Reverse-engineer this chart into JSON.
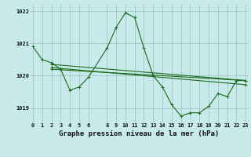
{
  "title": "Graphe pression niveau de la mer (hPa)",
  "background_color": "#c8eaea",
  "grid_color": "#a0c8c8",
  "line_color": "#1a6b1a",
  "series": [
    {
      "x": [
        0,
        1,
        2,
        3,
        4,
        5,
        6,
        8,
        9,
        10,
        11,
        12,
        13,
        14,
        15,
        16,
        17,
        18,
        19,
        20,
        21,
        22,
        23
      ],
      "y": [
        1020.9,
        1020.5,
        1020.4,
        1020.2,
        1019.55,
        1019.65,
        1019.95,
        1020.85,
        1021.5,
        1021.95,
        1021.8,
        1020.85,
        1020.0,
        1019.65,
        1019.1,
        1018.75,
        1018.85,
        1018.85,
        1019.05,
        1019.45,
        1019.35,
        1019.85,
        1019.85
      ]
    },
    {
      "x": [
        2,
        23
      ],
      "y": [
        1020.35,
        1019.85
      ]
    },
    {
      "x": [
        2,
        23
      ],
      "y": [
        1020.25,
        1019.72
      ]
    },
    {
      "x": [
        2,
        23
      ],
      "y": [
        1020.2,
        1019.85
      ]
    }
  ],
  "xlim": [
    -0.3,
    23.3
  ],
  "ylim": [
    1018.55,
    1022.2
  ],
  "yticks": [
    1019,
    1020,
    1021,
    1022
  ],
  "xticks": [
    0,
    1,
    2,
    3,
    4,
    5,
    6,
    8,
    9,
    10,
    11,
    12,
    13,
    14,
    15,
    16,
    17,
    18,
    19,
    20,
    21,
    22,
    23
  ],
  "tick_fontsize": 5.0,
  "title_fontsize": 6.5,
  "marker": "+"
}
